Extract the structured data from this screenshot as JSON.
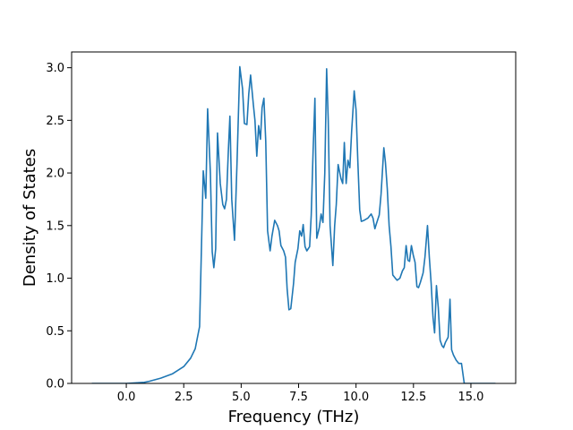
{
  "chart_data": {
    "type": "line",
    "xlabel": "Frequency (THz)",
    "ylabel": "Density of States",
    "color": "#1f77b4",
    "x": [
      -1.5,
      0,
      0.78,
      1.0,
      1.5,
      2.0,
      2.5,
      2.8,
      3.0,
      3.19,
      3.35,
      3.46,
      3.54,
      3.66,
      3.74,
      3.81,
      3.89,
      3.97,
      4.09,
      4.2,
      4.28,
      4.36,
      4.44,
      4.51,
      4.59,
      4.71,
      4.82,
      4.94,
      5.06,
      5.14,
      5.25,
      5.33,
      5.41,
      5.53,
      5.6,
      5.68,
      5.76,
      5.84,
      5.91,
      5.99,
      6.07,
      6.15,
      6.26,
      6.34,
      6.46,
      6.58,
      6.65,
      6.73,
      6.85,
      6.93,
      7.0,
      7.08,
      7.16,
      7.28,
      7.35,
      7.47,
      7.55,
      7.63,
      7.7,
      7.78,
      7.86,
      7.98,
      8.05,
      8.13,
      8.21,
      8.29,
      8.4,
      8.48,
      8.56,
      8.64,
      8.72,
      8.79,
      8.87,
      8.99,
      9.07,
      9.14,
      9.22,
      9.34,
      9.42,
      9.49,
      9.57,
      9.65,
      9.73,
      9.81,
      9.92,
      10.0,
      10.08,
      10.16,
      10.23,
      10.35,
      10.51,
      10.66,
      10.74,
      10.82,
      10.89,
      11.01,
      11.09,
      11.21,
      11.28,
      11.36,
      11.44,
      11.52,
      11.6,
      11.71,
      11.79,
      11.91,
      12.02,
      12.1,
      12.18,
      12.26,
      12.33,
      12.41,
      12.49,
      12.57,
      12.65,
      12.72,
      12.8,
      12.92,
      13.0,
      13.11,
      13.19,
      13.27,
      13.35,
      13.42,
      13.5,
      13.58,
      13.66,
      13.74,
      13.81,
      13.89,
      14.01,
      14.09,
      14.16,
      14.24,
      14.36,
      14.47,
      14.59,
      14.71,
      16.07
    ],
    "values": [
      0,
      0,
      0.01,
      0.02,
      0.05,
      0.09,
      0.16,
      0.24,
      0.33,
      0.54,
      2.02,
      1.76,
      2.61,
      2.0,
      1.25,
      1.1,
      1.28,
      2.38,
      1.9,
      1.7,
      1.66,
      1.75,
      2.2,
      2.54,
      1.75,
      1.36,
      2.1,
      3.01,
      2.8,
      2.47,
      2.46,
      2.75,
      2.93,
      2.65,
      2.5,
      2.16,
      2.45,
      2.32,
      2.62,
      2.71,
      2.3,
      1.45,
      1.26,
      1.4,
      1.55,
      1.5,
      1.45,
      1.31,
      1.26,
      1.2,
      0.9,
      0.7,
      0.71,
      0.95,
      1.15,
      1.28,
      1.45,
      1.4,
      1.51,
      1.3,
      1.26,
      1.3,
      1.6,
      2.2,
      2.71,
      1.38,
      1.48,
      1.61,
      1.53,
      2.0,
      2.99,
      2.5,
      1.5,
      1.12,
      1.5,
      1.7,
      2.08,
      1.95,
      1.9,
      2.29,
      1.9,
      2.12,
      2.05,
      2.4,
      2.78,
      2.6,
      2.1,
      1.65,
      1.54,
      1.55,
      1.57,
      1.61,
      1.57,
      1.47,
      1.52,
      1.6,
      1.8,
      2.24,
      2.1,
      1.85,
      1.5,
      1.3,
      1.03,
      1.0,
      0.98,
      1.0,
      1.07,
      1.1,
      1.31,
      1.17,
      1.16,
      1.31,
      1.22,
      1.15,
      0.92,
      0.91,
      0.96,
      1.05,
      1.2,
      1.5,
      1.2,
      0.95,
      0.63,
      0.48,
      0.93,
      0.72,
      0.41,
      0.36,
      0.34,
      0.39,
      0.44,
      0.8,
      0.32,
      0.27,
      0.22,
      0.19,
      0.19,
      0,
      0
    ],
    "xlim": [
      -2.38,
      16.95
    ],
    "ylim": [
      0,
      3.15
    ],
    "xticks": [
      {
        "value": 0,
        "label": "0.0"
      },
      2.5,
      {
        "value": 5,
        "label": "5.0"
      },
      7.5,
      {
        "value": 10,
        "label": "10.0"
      },
      12.5,
      {
        "value": 15,
        "label": "15.0"
      }
    ],
    "yticks": [
      {
        "value": 0,
        "label": "0.0"
      },
      0.5,
      {
        "value": 1,
        "label": "1.0"
      },
      1.5,
      {
        "value": 2,
        "label": "2.0"
      },
      2.5,
      {
        "value": 3,
        "label": "3.0"
      }
    ],
    "grid": false
  }
}
